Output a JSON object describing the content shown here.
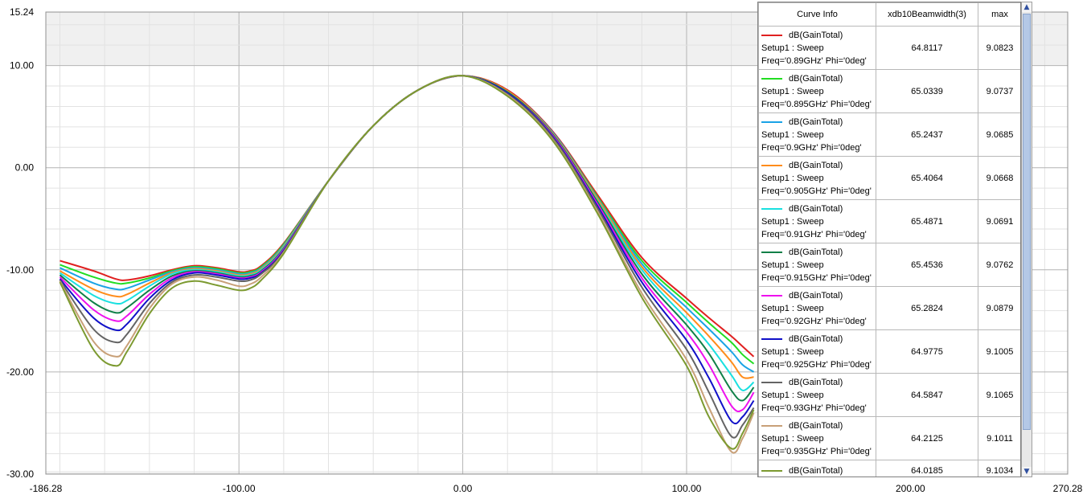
{
  "chart_data": {
    "type": "line",
    "x_range": [
      -186.28,
      270.28
    ],
    "y_range": [
      -30.0,
      15.24
    ],
    "shaded_above": 10.0,
    "x_ticks": [
      {
        "value": -186.28,
        "label": "-186.28"
      },
      {
        "value": -100,
        "label": "-100.00"
      },
      {
        "value": 0,
        "label": "0.00"
      },
      {
        "value": 100,
        "label": "100.00"
      },
      {
        "value": 200,
        "label": "200.00"
      },
      {
        "value": 270.28,
        "label": "270.28"
      }
    ],
    "y_ticks": [
      {
        "value": 15.24,
        "label": "15.24"
      },
      {
        "value": 10,
        "label": "10.00"
      },
      {
        "value": 0,
        "label": "0.00"
      },
      {
        "value": -10,
        "label": "-10.00"
      },
      {
        "value": -20,
        "label": "-20.00"
      },
      {
        "value": -30,
        "label": "-30.00"
      }
    ],
    "grid": true,
    "x": [
      -180,
      -165,
      -155,
      -150,
      -140,
      -130,
      -120,
      -110,
      -100,
      -95,
      -90,
      -80,
      -60,
      -40,
      -20,
      0,
      20,
      40,
      60,
      80,
      100,
      110,
      120,
      125,
      130
    ],
    "series": [
      {
        "name": "0.89GHz",
        "color": "#e02020",
        "values": [
          -9.1,
          -10.1,
          -10.9,
          -11.0,
          -10.6,
          -10.0,
          -9.6,
          -9.8,
          -10.2,
          -10.1,
          -9.6,
          -7.4,
          -1.3,
          4.1,
          7.6,
          9.0,
          7.6,
          3.6,
          -2.6,
          -8.8,
          -12.8,
          -14.7,
          -16.5,
          -17.5,
          -18.5
        ]
      },
      {
        "name": "0.895GHz",
        "color": "#22dd22",
        "values": [
          -9.5,
          -10.7,
          -11.3,
          -11.3,
          -10.8,
          -10.1,
          -9.7,
          -9.9,
          -10.3,
          -10.2,
          -9.7,
          -7.5,
          -1.3,
          4.1,
          7.6,
          9.0,
          7.5,
          3.5,
          -2.8,
          -9.1,
          -13.2,
          -15.2,
          -17.1,
          -18.3,
          -19.2
        ]
      },
      {
        "name": "0.9GHz",
        "color": "#1aa3e6",
        "values": [
          -9.8,
          -11.3,
          -11.9,
          -11.8,
          -11.0,
          -10.2,
          -9.8,
          -10.0,
          -10.4,
          -10.3,
          -9.8,
          -7.6,
          -1.3,
          4.1,
          7.6,
          9.0,
          7.5,
          3.5,
          -2.9,
          -9.4,
          -13.7,
          -15.8,
          -18.0,
          -19.3,
          -20.0
        ]
      },
      {
        "name": "0.905GHz",
        "color": "#ff8c1a",
        "values": [
          -10.1,
          -11.9,
          -12.6,
          -12.4,
          -11.3,
          -10.3,
          -9.9,
          -10.1,
          -10.5,
          -10.4,
          -9.9,
          -7.7,
          -1.3,
          4.1,
          7.6,
          9.0,
          7.5,
          3.4,
          -3.0,
          -9.7,
          -14.2,
          -16.5,
          -19.0,
          -20.5,
          -20.5
        ]
      },
      {
        "name": "0.91GHz",
        "color": "#19e0e0",
        "values": [
          -10.3,
          -12.5,
          -13.3,
          -13.0,
          -11.6,
          -10.4,
          -10.0,
          -10.2,
          -10.6,
          -10.5,
          -10.0,
          -7.8,
          -1.3,
          4.1,
          7.6,
          9.0,
          7.4,
          3.3,
          -3.2,
          -10.0,
          -14.8,
          -17.3,
          -20.3,
          -21.8,
          -21.0
        ]
      },
      {
        "name": "0.915GHz",
        "color": "#108048",
        "values": [
          -10.5,
          -13.2,
          -14.2,
          -13.7,
          -12.0,
          -10.6,
          -10.1,
          -10.3,
          -10.7,
          -10.6,
          -10.1,
          -7.9,
          -1.3,
          4.1,
          7.6,
          9.0,
          7.4,
          3.3,
          -3.3,
          -10.4,
          -15.4,
          -18.2,
          -21.8,
          -22.8,
          -21.5
        ]
      },
      {
        "name": "0.92GHz",
        "color": "#ee10ee",
        "values": [
          -10.7,
          -13.9,
          -15.0,
          -14.5,
          -12.4,
          -10.8,
          -10.2,
          -10.4,
          -10.8,
          -10.7,
          -10.2,
          -8.0,
          -1.3,
          4.1,
          7.6,
          9.0,
          7.3,
          3.2,
          -3.5,
          -10.8,
          -16.1,
          -19.3,
          -23.3,
          -23.7,
          -22.0
        ]
      },
      {
        "name": "0.925GHz",
        "color": "#1010c8",
        "values": [
          -10.9,
          -14.7,
          -15.9,
          -15.3,
          -12.8,
          -11.0,
          -10.3,
          -10.5,
          -10.9,
          -10.8,
          -10.3,
          -8.1,
          -1.3,
          4.1,
          7.6,
          9.0,
          7.3,
          3.1,
          -3.7,
          -11.2,
          -16.9,
          -20.6,
          -24.8,
          -24.4,
          -22.8
        ]
      },
      {
        "name": "0.93GHz",
        "color": "#646464",
        "values": [
          -11.0,
          -15.8,
          -17.1,
          -16.3,
          -13.3,
          -11.2,
          -10.5,
          -10.7,
          -11.1,
          -11.0,
          -10.4,
          -8.2,
          -1.3,
          4.1,
          7.6,
          9.0,
          7.2,
          3.0,
          -3.9,
          -11.7,
          -17.8,
          -22.0,
          -26.3,
          -25.2,
          -23.5
        ]
      },
      {
        "name": "0.935GHz",
        "color": "#c8a078",
        "values": [
          -11.1,
          -17.0,
          -18.5,
          -17.4,
          -13.8,
          -11.4,
          -10.7,
          -11.0,
          -11.6,
          -11.4,
          -10.7,
          -8.3,
          -1.3,
          4.1,
          7.6,
          9.0,
          7.1,
          2.8,
          -4.2,
          -12.3,
          -18.8,
          -23.5,
          -27.8,
          -26.5,
          -24.0
        ]
      },
      {
        "name": "0.94GHz",
        "color": "#7c9a30",
        "values": [
          -11.2,
          -17.8,
          -19.4,
          -18.0,
          -14.3,
          -11.8,
          -11.1,
          -11.5,
          -12.0,
          -11.8,
          -11.0,
          -8.4,
          -1.3,
          4.1,
          7.6,
          9.0,
          7.0,
          2.7,
          -4.4,
          -12.7,
          -19.4,
          -24.4,
          -27.5,
          -26.0,
          -23.7
        ]
      }
    ]
  },
  "legend": {
    "headers": [
      "Curve Info",
      "xdb10Beamwidth(3)",
      "max"
    ],
    "rows": [
      {
        "color": "#e02020",
        "line1": "dB(GainTotal)",
        "line2": "Setup1 : Sweep",
        "line3": "Freq='0.89GHz' Phi='0deg'",
        "beamwidth": "64.8117",
        "max": "9.0823"
      },
      {
        "color": "#22dd22",
        "line1": "dB(GainTotal)",
        "line2": "Setup1 : Sweep",
        "line3": "Freq='0.895GHz' Phi='0deg'",
        "beamwidth": "65.0339",
        "max": "9.0737"
      },
      {
        "color": "#1aa3e6",
        "line1": "dB(GainTotal)",
        "line2": "Setup1 : Sweep",
        "line3": "Freq='0.9GHz' Phi='0deg'",
        "beamwidth": "65.2437",
        "max": "9.0685"
      },
      {
        "color": "#ff8c1a",
        "line1": "dB(GainTotal)",
        "line2": "Setup1 : Sweep",
        "line3": "Freq='0.905GHz' Phi='0deg'",
        "beamwidth": "65.4064",
        "max": "9.0668"
      },
      {
        "color": "#19e0e0",
        "line1": "dB(GainTotal)",
        "line2": "Setup1 : Sweep",
        "line3": "Freq='0.91GHz' Phi='0deg'",
        "beamwidth": "65.4871",
        "max": "9.0691"
      },
      {
        "color": "#108048",
        "line1": "dB(GainTotal)",
        "line2": "Setup1 : Sweep",
        "line3": "Freq='0.915GHz' Phi='0deg'",
        "beamwidth": "65.4536",
        "max": "9.0762"
      },
      {
        "color": "#ee10ee",
        "line1": "dB(GainTotal)",
        "line2": "Setup1 : Sweep",
        "line3": "Freq='0.92GHz' Phi='0deg'",
        "beamwidth": "65.2824",
        "max": "9.0879"
      },
      {
        "color": "#1010c8",
        "line1": "dB(GainTotal)",
        "line2": "Setup1 : Sweep",
        "line3": "Freq='0.925GHz' Phi='0deg'",
        "beamwidth": "64.9775",
        "max": "9.1005"
      },
      {
        "color": "#646464",
        "line1": "dB(GainTotal)",
        "line2": "Setup1 : Sweep",
        "line3": "Freq='0.93GHz' Phi='0deg'",
        "beamwidth": "64.5847",
        "max": "9.1065"
      },
      {
        "color": "#c8a078",
        "line1": "dB(GainTotal)",
        "line2": "Setup1 : Sweep",
        "line3": "Freq='0.935GHz' Phi='0deg'",
        "beamwidth": "64.2125",
        "max": "9.1011"
      },
      {
        "color": "#7c9a30",
        "line1": "dB(GainTotal)",
        "line2": "",
        "line3": "",
        "beamwidth": "64.0185",
        "max": "9.1034"
      }
    ]
  },
  "scrollbar": {
    "up_icon": "scroll-up-icon",
    "down_icon": "scroll-down-icon"
  }
}
